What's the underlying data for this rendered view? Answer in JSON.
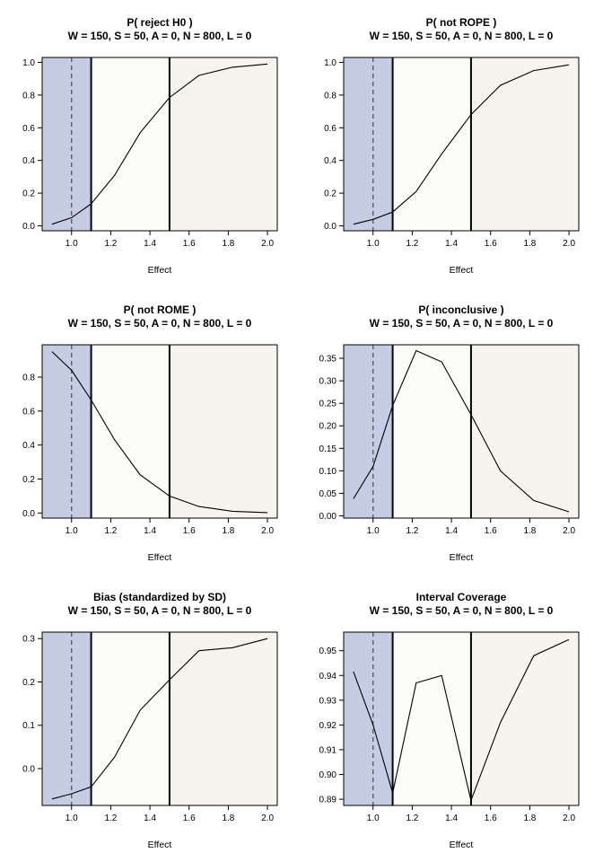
{
  "chart_data": [
    {
      "type": "line",
      "title": "P( reject H0 )",
      "subtitle": "W = 150, S = 50, A = 0, N = 800, L = 0",
      "xlabel": "Effect",
      "ylabel": "",
      "xlim": [
        0.85,
        2.05
      ],
      "ylim": [
        -0.03,
        1.03
      ],
      "xticks": [
        "1.0",
        "1.2",
        "1.4",
        "1.6",
        "1.8",
        "2.0"
      ],
      "yticks": [
        "0.0",
        "0.2",
        "0.4",
        "0.6",
        "0.8",
        "1.0"
      ],
      "regions": [
        {
          "from": 0.85,
          "to": 1.1,
          "color": "#c5cce3"
        },
        {
          "from": 1.1,
          "to": 1.5,
          "color": "#fbfbf9"
        },
        {
          "from": 1.5,
          "to": 2.05,
          "color": "#f7f3ef"
        }
      ],
      "dashed_line_x": 1.0,
      "solid_lines_x": [
        1.1,
        1.5
      ],
      "x": [
        0.9,
        1.0,
        1.1,
        1.22,
        1.35,
        1.5,
        1.65,
        1.82,
        2.0
      ],
      "y": [
        0.01,
        0.05,
        0.135,
        0.31,
        0.57,
        0.785,
        0.92,
        0.97,
        0.99
      ]
    },
    {
      "type": "line",
      "title": "P( not ROPE )",
      "subtitle": "W = 150, S = 50, A = 0, N = 800, L = 0",
      "xlabel": "Effect",
      "ylabel": "",
      "xlim": [
        0.85,
        2.05
      ],
      "ylim": [
        -0.03,
        1.03
      ],
      "xticks": [
        "1.0",
        "1.2",
        "1.4",
        "1.6",
        "1.8",
        "2.0"
      ],
      "yticks": [
        "0.0",
        "0.2",
        "0.4",
        "0.6",
        "0.8",
        "1.0"
      ],
      "regions": [
        {
          "from": 0.85,
          "to": 1.1,
          "color": "#c5cce3"
        },
        {
          "from": 1.1,
          "to": 1.5,
          "color": "#fbfbf9"
        },
        {
          "from": 1.5,
          "to": 2.05,
          "color": "#f7f3ef"
        }
      ],
      "dashed_line_x": 1.0,
      "solid_lines_x": [
        1.1,
        1.5
      ],
      "x": [
        0.9,
        1.0,
        1.1,
        1.22,
        1.35,
        1.5,
        1.65,
        1.82,
        2.0
      ],
      "y": [
        0.01,
        0.04,
        0.085,
        0.21,
        0.44,
        0.68,
        0.86,
        0.95,
        0.985
      ]
    },
    {
      "type": "line",
      "title": "P( not ROME )",
      "subtitle": "W = 150, S = 50, A = 0, N = 800, L = 0",
      "xlabel": "Effect",
      "ylabel": "",
      "xlim": [
        0.85,
        2.05
      ],
      "ylim": [
        -0.03,
        0.99
      ],
      "xticks": [
        "1.0",
        "1.2",
        "1.4",
        "1.6",
        "1.8",
        "2.0"
      ],
      "yticks": [
        "0.0",
        "0.2",
        "0.4",
        "0.6",
        "0.8"
      ],
      "regions": [
        {
          "from": 0.85,
          "to": 1.1,
          "color": "#c5cce3"
        },
        {
          "from": 1.1,
          "to": 1.5,
          "color": "#fbfbf9"
        },
        {
          "from": 1.5,
          "to": 2.05,
          "color": "#f7f3ef"
        }
      ],
      "dashed_line_x": 1.0,
      "solid_lines_x": [
        1.1,
        1.5
      ],
      "x": [
        0.9,
        1.0,
        1.1,
        1.22,
        1.35,
        1.5,
        1.65,
        1.82,
        2.0
      ],
      "y": [
        0.95,
        0.84,
        0.665,
        0.43,
        0.225,
        0.1,
        0.038,
        0.01,
        0.002
      ]
    },
    {
      "type": "line",
      "title": "P( inconclusive )",
      "subtitle": "W = 150, S = 50, A = 0, N = 800, L = 0",
      "xlabel": "Effect",
      "ylabel": "",
      "xlim": [
        0.85,
        2.05
      ],
      "ylim": [
        -0.005,
        0.38
      ],
      "xticks": [
        "1.0",
        "1.2",
        "1.4",
        "1.6",
        "1.8",
        "2.0"
      ],
      "yticks": [
        "0.00",
        "0.05",
        "0.10",
        "0.15",
        "0.20",
        "0.25",
        "0.30",
        "0.35"
      ],
      "regions": [
        {
          "from": 0.85,
          "to": 1.1,
          "color": "#c5cce3"
        },
        {
          "from": 1.1,
          "to": 1.5,
          "color": "#fbfbf9"
        },
        {
          "from": 1.5,
          "to": 2.05,
          "color": "#f7f3ef"
        }
      ],
      "dashed_line_x": 1.0,
      "solid_lines_x": [
        1.1,
        1.5
      ],
      "x": [
        0.9,
        1.0,
        1.1,
        1.22,
        1.35,
        1.5,
        1.65,
        1.82,
        2.0
      ],
      "y": [
        0.038,
        0.11,
        0.245,
        0.367,
        0.342,
        0.225,
        0.1,
        0.034,
        0.009
      ]
    },
    {
      "type": "line",
      "title": "Bias (standardized by SD)",
      "subtitle": "W = 150, S = 50, A = 0, N = 800, L = 0",
      "xlabel": "Effect",
      "ylabel": "",
      "xlim": [
        0.85,
        2.05
      ],
      "ylim": [
        -0.085,
        0.315
      ],
      "xticks": [
        "1.0",
        "1.2",
        "1.4",
        "1.6",
        "1.8",
        "2.0"
      ],
      "yticks": [
        "0.0",
        "0.1",
        "0.2",
        "0.3"
      ],
      "regions": [
        {
          "from": 0.85,
          "to": 1.1,
          "color": "#c5cce3"
        },
        {
          "from": 1.1,
          "to": 1.5,
          "color": "#fbfbf9"
        },
        {
          "from": 1.5,
          "to": 2.05,
          "color": "#f7f3ef"
        }
      ],
      "dashed_line_x": 1.0,
      "solid_lines_x": [
        1.1,
        1.5
      ],
      "x": [
        0.9,
        1.0,
        1.1,
        1.22,
        1.35,
        1.5,
        1.65,
        1.82,
        2.0
      ],
      "y": [
        -0.07,
        -0.058,
        -0.042,
        0.027,
        0.135,
        0.205,
        0.272,
        0.279,
        0.3
      ]
    },
    {
      "type": "line",
      "title": "Interval Coverage",
      "subtitle": "W = 150, S = 50, A = 0, N = 800, L = 0",
      "xlabel": "Effect",
      "ylabel": "",
      "xlim": [
        0.85,
        2.05
      ],
      "ylim": [
        0.8875,
        0.9575
      ],
      "xticks": [
        "1.0",
        "1.2",
        "1.4",
        "1.6",
        "1.8",
        "2.0"
      ],
      "yticks": [
        "0.89",
        "0.90",
        "0.91",
        "0.92",
        "0.93",
        "0.94",
        "0.95"
      ],
      "regions": [
        {
          "from": 0.85,
          "to": 1.1,
          "color": "#c5cce3"
        },
        {
          "from": 1.1,
          "to": 1.5,
          "color": "#fbfbf9"
        },
        {
          "from": 1.5,
          "to": 2.05,
          "color": "#f7f3ef"
        }
      ],
      "dashed_line_x": 1.0,
      "solid_lines_x": [
        1.1,
        1.5
      ],
      "x": [
        0.9,
        1.0,
        1.1,
        1.22,
        1.35,
        1.5,
        1.65,
        1.82,
        2.0
      ],
      "y": [
        0.9415,
        0.92,
        0.8925,
        0.937,
        0.94,
        0.8895,
        0.921,
        0.948,
        0.9545
      ]
    }
  ]
}
